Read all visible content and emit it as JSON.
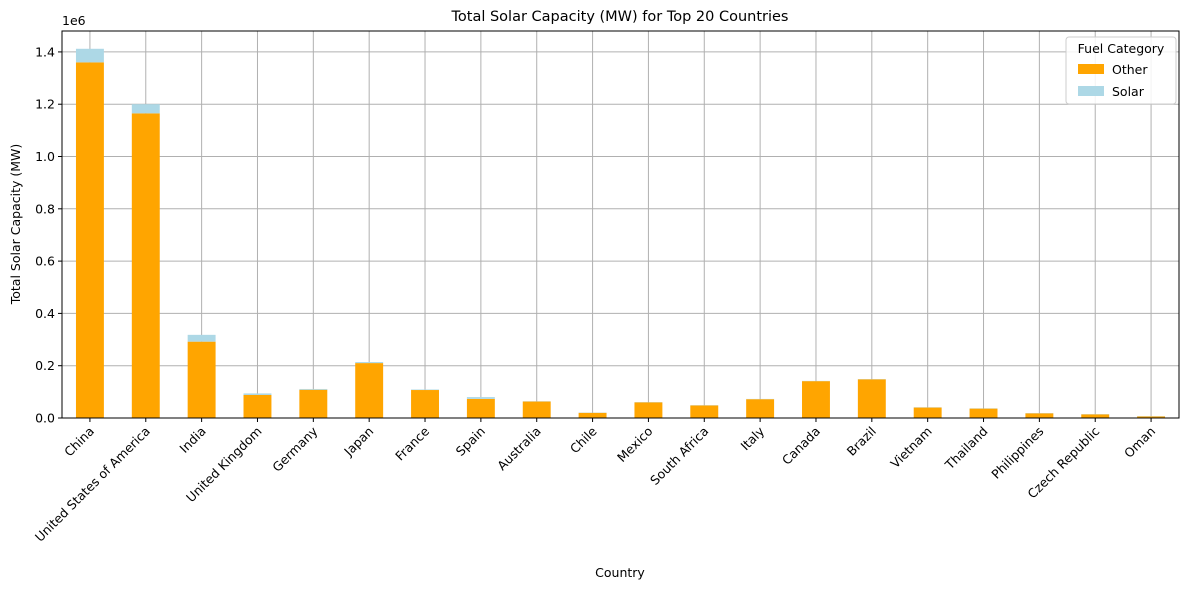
{
  "chart_data": {
    "type": "bar",
    "stacked": true,
    "title": "Total Solar Capacity (MW) for Top 20 Countries",
    "xlabel": "Country",
    "ylabel": "Total Solar Capacity (MW)",
    "y_scale_label": "1e6",
    "ylim": [
      0,
      1480000
    ],
    "yticks": [
      0,
      200000,
      400000,
      600000,
      800000,
      1000000,
      1200000,
      1400000
    ],
    "ytick_labels": [
      "0.0",
      "0.2",
      "0.4",
      "0.6",
      "0.8",
      "1.0",
      "1.2",
      "1.4"
    ],
    "grid": true,
    "legend_title": "Fuel Category",
    "legend_position": "top-right",
    "categories": [
      "China",
      "United States of America",
      "India",
      "United Kingdom",
      "Germany",
      "Japan",
      "France",
      "Spain",
      "Australia",
      "Chile",
      "Mexico",
      "South Africa",
      "Italy",
      "Canada",
      "Brazil",
      "Vietnam",
      "Thailand",
      "Philippines",
      "Czech Republic",
      "Oman"
    ],
    "series": [
      {
        "name": "Other",
        "color": "#ffa500",
        "values": [
          1360000,
          1165000,
          292000,
          88000,
          108000,
          210000,
          107000,
          73000,
          63000,
          20000,
          60000,
          48000,
          72000,
          141000,
          148000,
          40000,
          36000,
          18000,
          14000,
          6000
        ]
      },
      {
        "name": "Solar",
        "color": "#add8e6",
        "values": [
          52000,
          35000,
          26000,
          6000,
          3000,
          4000,
          2000,
          7000,
          1000,
          1000,
          1000,
          1000,
          1000,
          1000,
          1000,
          1000,
          1000,
          1000,
          1000,
          1000
        ]
      }
    ]
  }
}
